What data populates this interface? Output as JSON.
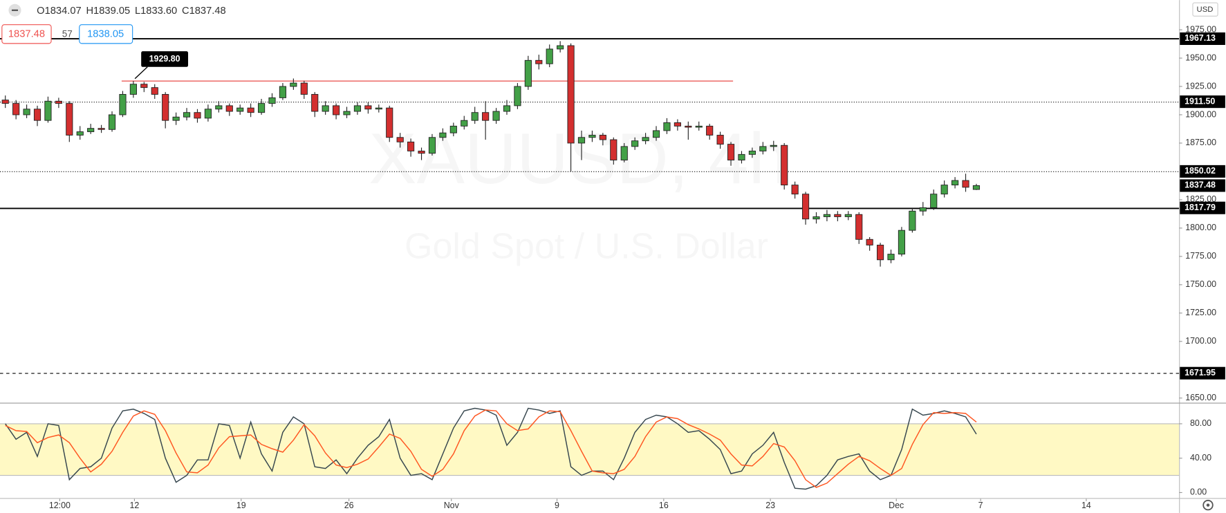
{
  "header": {
    "ohlc": [
      "O1834.07",
      "H1839.05",
      "L1833.60",
      "C1837.48"
    ],
    "bid": "1837.48",
    "spread": "57",
    "ask": "1838.05",
    "currency": "USD"
  },
  "chart_data": [
    {
      "type": "candlestick",
      "watermark": [
        "XAUUSD, 4h",
        "Gold Spot / U.S. Dollar"
      ],
      "series": [
        {
          "up_color": "#43a047",
          "down_color": "#d32f2f",
          "open": [
            1913,
            1910,
            1900,
            1905,
            1895,
            1912,
            1910,
            1882,
            1885,
            1888,
            1887,
            1900,
            1918,
            1927,
            1924,
            1918,
            1895,
            1898,
            1902,
            1897,
            1905,
            1908,
            1903,
            1906,
            1902,
            1910,
            1915,
            1925,
            1928,
            1918,
            1903,
            1908,
            1900,
            1903,
            1908,
            1905,
            1906,
            1880,
            1876,
            1868,
            1866,
            1880,
            1884,
            1890,
            1895,
            1902,
            1895,
            1903,
            1908,
            1925,
            1948,
            1945,
            1958,
            1961,
            1875,
            1880,
            1882,
            1878,
            1860,
            1872,
            1877,
            1880,
            1886,
            1893,
            1890,
            1889,
            1890,
            1882,
            1874,
            1860,
            1865,
            1868,
            1872,
            1873,
            1838,
            1830,
            1808,
            1810,
            1812,
            1810,
            1812,
            1790,
            1785,
            1772,
            1777,
            1798,
            1815,
            1818,
            1830,
            1838,
            1842,
            1834.07
          ],
          "high": [
            1917,
            1913,
            1909,
            1908,
            1916,
            1915,
            1912,
            1890,
            1892,
            1891,
            1903,
            1921,
            1929.8,
            1929,
            1927,
            1920,
            1902,
            1906,
            1905,
            1909,
            1912,
            1910,
            1909,
            1910,
            1914,
            1919,
            1928,
            1932,
            1930,
            1920,
            1912,
            1910,
            1907,
            1911,
            1911,
            1909,
            1908,
            1884,
            1879,
            1871,
            1883,
            1888,
            1893,
            1899,
            1907,
            1912,
            1906,
            1913,
            1928,
            1952,
            1953,
            1962,
            1965,
            1963,
            1886,
            1886,
            1884,
            1880,
            1875,
            1880,
            1884,
            1890,
            1897,
            1896,
            1894,
            1894,
            1892,
            1885,
            1876,
            1868,
            1871,
            1876,
            1877,
            1875,
            1841,
            1832,
            1814,
            1816,
            1815,
            1815,
            1814,
            1792,
            1787,
            1781,
            1801,
            1818,
            1823,
            1834,
            1842,
            1845,
            1848,
            1839.05
          ],
          "low": [
            1906,
            1896,
            1897,
            1890,
            1893,
            1906,
            1876,
            1878,
            1883,
            1884,
            1885,
            1898,
            1915,
            1920,
            1914,
            1888,
            1891,
            1895,
            1893,
            1894,
            1902,
            1899,
            1900,
            1898,
            1900,
            1907,
            1913,
            1922,
            1914,
            1898,
            1900,
            1896,
            1897,
            1900,
            1901,
            1902,
            1876,
            1871,
            1863,
            1860,
            1864,
            1877,
            1881,
            1887,
            1892,
            1878,
            1892,
            1900,
            1905,
            1922,
            1940,
            1942,
            1955,
            1850,
            1860,
            1876,
            1873,
            1856,
            1858,
            1869,
            1874,
            1877,
            1883,
            1886,
            1878,
            1886,
            1878,
            1870,
            1855,
            1857,
            1862,
            1865,
            1868,
            1834,
            1826,
            1803,
            1804,
            1806,
            1806,
            1807,
            1786,
            1780,
            1766,
            1769,
            1775,
            1796,
            1811,
            1816,
            1827,
            1835,
            1832,
            1833.6
          ],
          "close": [
            1910,
            1900,
            1905,
            1895,
            1912,
            1910,
            1882,
            1885,
            1888,
            1887,
            1900,
            1918,
            1927,
            1924,
            1918,
            1895,
            1898,
            1902,
            1897,
            1905,
            1908,
            1903,
            1906,
            1902,
            1910,
            1915,
            1925,
            1928,
            1918,
            1903,
            1908,
            1900,
            1903,
            1908,
            1905,
            1906,
            1880,
            1876,
            1868,
            1866,
            1880,
            1884,
            1890,
            1895,
            1902,
            1895,
            1903,
            1908,
            1925,
            1948,
            1945,
            1958,
            1961,
            1875,
            1880,
            1882,
            1878,
            1860,
            1872,
            1877,
            1880,
            1886,
            1893,
            1890,
            1889,
            1890,
            1882,
            1874,
            1860,
            1865,
            1868,
            1872,
            1873,
            1838,
            1830,
            1808,
            1810,
            1812,
            1810,
            1812,
            1790,
            1785,
            1772,
            1777,
            1798,
            1815,
            1818,
            1830,
            1838,
            1842,
            1836,
            1837.48
          ]
        }
      ],
      "xlim": [
        0,
        110.5
      ],
      "xticks": [
        {
          "value": 5.6,
          "label": "12:00"
        },
        {
          "value": 12.6,
          "label": "12"
        },
        {
          "value": 22.6,
          "label": "19"
        },
        {
          "value": 32.7,
          "label": "26"
        },
        {
          "value": 42.3,
          "label": "Nov"
        },
        {
          "value": 52.2,
          "label": "9"
        },
        {
          "value": 62.2,
          "label": "16"
        },
        {
          "value": 72.2,
          "label": "23"
        },
        {
          "value": 84.0,
          "label": "Dec"
        },
        {
          "value": 91.9,
          "label": "7"
        },
        {
          "value": 101.8,
          "label": "14"
        }
      ],
      "ylim": [
        1645.9,
        2001.2
      ],
      "yticks": [
        {
          "value": 1650,
          "label": "1650.00"
        },
        {
          "value": 1700,
          "label": "1700.00"
        },
        {
          "value": 1725,
          "label": "1725.00"
        },
        {
          "value": 1750,
          "label": "1750.00"
        },
        {
          "value": 1775,
          "label": "1775.00"
        },
        {
          "value": 1800,
          "label": "1800.00"
        },
        {
          "value": 1825,
          "label": "1825.00"
        },
        {
          "value": 1875,
          "label": "1875.00"
        },
        {
          "value": 1900,
          "label": "1900.00"
        },
        {
          "value": 1925,
          "label": "1925.00"
        },
        {
          "value": 1950,
          "label": "1950.00"
        },
        {
          "value": 1975,
          "label": "1975.00"
        }
      ],
      "levels": [
        {
          "value": 1967.13,
          "label": "1967.13",
          "style": "solid"
        },
        {
          "value": 1911.5,
          "label": "1911.50",
          "style": "dotted"
        },
        {
          "value": 1850.02,
          "label": "1850.02",
          "style": "dotted"
        },
        {
          "value": 1817.79,
          "label": "1817.79",
          "style": "solid"
        },
        {
          "value": 1671.95,
          "label": "1671.95",
          "style": "dashed"
        }
      ],
      "annotation": {
        "value": 1929.8,
        "label": "1929.80",
        "x": [
          11.4,
          68.7
        ],
        "color": "#e53935"
      }
    },
    {
      "type": "line",
      "series": [
        {
          "color": "#37474f",
          "values": [
            80,
            62,
            70,
            42,
            80,
            78,
            15,
            28,
            30,
            40,
            75,
            95,
            97,
            92,
            85,
            40,
            12,
            20,
            38,
            38,
            80,
            78,
            40,
            82,
            45,
            25,
            70,
            88,
            80,
            30,
            28,
            38,
            22,
            40,
            55,
            65,
            85,
            40,
            20,
            22,
            15,
            45,
            75,
            95,
            98,
            96,
            90,
            55,
            70,
            98,
            96,
            92,
            95,
            30,
            20,
            25,
            25,
            15,
            40,
            70,
            85,
            90,
            88,
            80,
            70,
            72,
            62,
            50,
            22,
            25,
            45,
            55,
            70,
            35,
            5,
            4,
            8,
            20,
            38,
            42,
            45,
            25,
            15,
            20,
            50,
            97,
            90,
            92,
            95,
            92,
            88,
            68
          ]
        },
        {
          "color": "#ff5722",
          "values": [
            78,
            72,
            71,
            58,
            64,
            67,
            58,
            40,
            24,
            33,
            48,
            70,
            89,
            95,
            91,
            72,
            46,
            24,
            23,
            32,
            52,
            65,
            66,
            67,
            56,
            51,
            47,
            61,
            79,
            66,
            46,
            32,
            29,
            33,
            39,
            53,
            68,
            63,
            48,
            27,
            19,
            27,
            45,
            72,
            89,
            96,
            95,
            80,
            72,
            74,
            88,
            95,
            94,
            72,
            48,
            25,
            23,
            22,
            27,
            42,
            65,
            82,
            88,
            86,
            79,
            74,
            68,
            61,
            45,
            32,
            31,
            42,
            57,
            53,
            37,
            15,
            6,
            11,
            22,
            33,
            42,
            37,
            28,
            20,
            28,
            56,
            79,
            93,
            92,
            93,
            92,
            82
          ]
        }
      ],
      "band": [
        20,
        80
      ],
      "band_color": "#fff9c4",
      "xlim": [
        0,
        110.5
      ],
      "ylim": [
        -7.3,
        103.6
      ],
      "yticks": [
        {
          "value": 0,
          "label": "0.00"
        },
        {
          "value": 40,
          "label": "40.00"
        },
        {
          "value": 80,
          "label": "80.00"
        }
      ]
    }
  ]
}
